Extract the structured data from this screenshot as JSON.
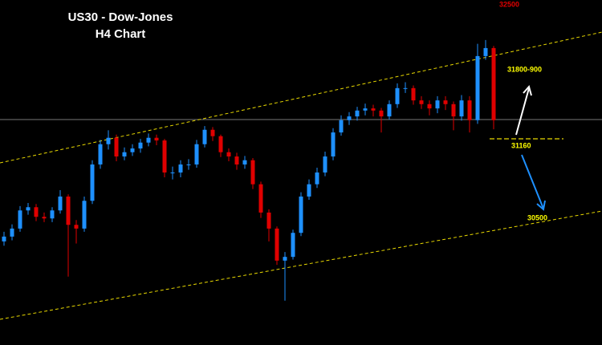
{
  "chart_data": {
    "type": "candlestick",
    "title": "US30 - Dow-Jones",
    "subtitle": "H4 Chart",
    "annotations": [
      32500,
      "31800-900",
      31160,
      30500
    ],
    "ylim": [
      29230,
      32460
    ],
    "up_color": "#1e90ff",
    "down_color": "#e00000",
    "open": [
      30200,
      30245,
      30320,
      30490,
      30520,
      30430,
      30415,
      30490,
      30620,
      30355,
      30320,
      30580,
      30920,
      31110,
      31170,
      30995,
      31035,
      31070,
      31125,
      31170,
      31145,
      30845,
      30845,
      30920,
      30920,
      31110,
      31245,
      31185,
      31035,
      30995,
      30920,
      30960,
      30735,
      30470,
      30320,
      30020,
      30055,
      30280,
      30620,
      30735,
      30845,
      30995,
      31220,
      31335,
      31370,
      31425,
      31445,
      31425,
      31370,
      31485,
      31635,
      31635,
      31520,
      31485,
      31445,
      31520,
      31485,
      31370,
      31520,
      31335,
      31935,
      32010
    ],
    "high": [
      30290,
      30360,
      30530,
      30560,
      30550,
      30470,
      30520,
      30680,
      30640,
      30400,
      30620,
      30960,
      31150,
      31240,
      31200,
      31080,
      31110,
      31160,
      31210,
      31200,
      31160,
      30900,
      30960,
      30970,
      31150,
      31280,
      31270,
      31200,
      31070,
      31030,
      31000,
      30980,
      30760,
      30500,
      30340,
      30100,
      30310,
      30660,
      30780,
      30890,
      31040,
      31260,
      31380,
      31410,
      31460,
      31490,
      31480,
      31450,
      31520,
      31680,
      31690,
      31660,
      31560,
      31520,
      31560,
      31560,
      31510,
      31570,
      31560,
      32050,
      32085,
      32030
    ],
    "low": [
      30160,
      30210,
      30290,
      30450,
      30390,
      30380,
      30380,
      30460,
      29870,
      30180,
      30290,
      30550,
      30880,
      31060,
      30950,
      30960,
      31000,
      31030,
      31090,
      31100,
      30800,
      30780,
      30800,
      30870,
      30890,
      31080,
      31140,
      30990,
      30950,
      30870,
      30880,
      30690,
      30420,
      30200,
      29980,
      29645,
      30030,
      30250,
      30590,
      30700,
      30810,
      30960,
      31190,
      31290,
      31330,
      31380,
      31370,
      31220,
      31340,
      31450,
      31590,
      31480,
      31440,
      31380,
      31400,
      31430,
      31240,
      31330,
      31220,
      31300,
      31900,
      31250
    ],
    "close": [
      30245,
      30320,
      30490,
      30520,
      30430,
      30415,
      30490,
      30620,
      30355,
      30320,
      30580,
      30920,
      31110,
      31170,
      30995,
      31035,
      31070,
      31125,
      31170,
      31145,
      30845,
      30845,
      30920,
      30920,
      31110,
      31245,
      31185,
      31035,
      30995,
      30920,
      30960,
      30735,
      30470,
      30320,
      30020,
      30055,
      30280,
      30620,
      30735,
      30845,
      30995,
      31220,
      31335,
      31370,
      31425,
      31445,
      31425,
      31370,
      31485,
      31635,
      31635,
      31520,
      31485,
      31445,
      31520,
      31485,
      31370,
      31520,
      31335,
      31935,
      32010,
      31335
    ]
  }
}
